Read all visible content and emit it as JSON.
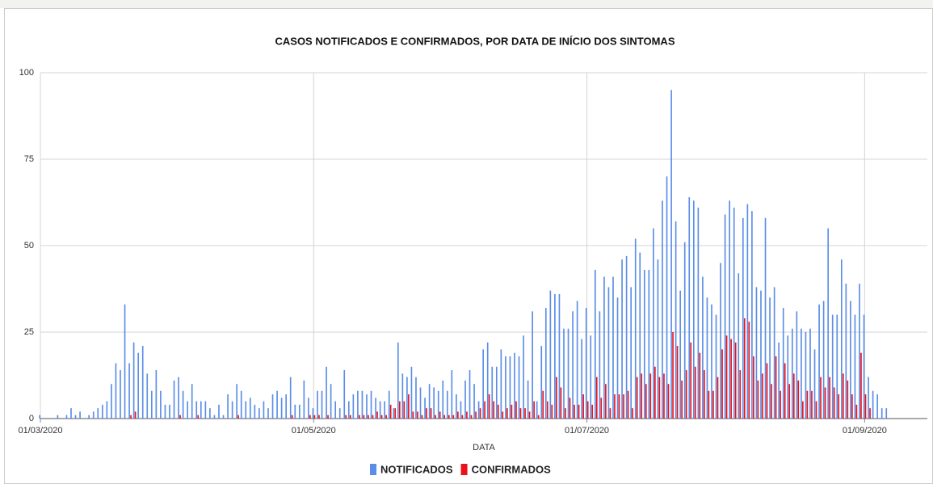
{
  "chart_data": {
    "type": "bar",
    "title": "CASOS NOTIFICADOS E CONFIRMADOS, POR DATA DE INÍCIO DOS SINTOMAS",
    "x_label": "DATA",
    "x": [
      "01/03/2020",
      "02/03/2020",
      "03/03/2020",
      "04/03/2020",
      "05/03/2020",
      "06/03/2020",
      "07/03/2020",
      "08/03/2020",
      "09/03/2020",
      "10/03/2020",
      "11/03/2020",
      "12/03/2020",
      "13/03/2020",
      "14/03/2020",
      "15/03/2020",
      "16/03/2020",
      "17/03/2020",
      "18/03/2020",
      "19/03/2020",
      "20/03/2020",
      "21/03/2020",
      "22/03/2020",
      "23/03/2020",
      "24/03/2020",
      "25/03/2020",
      "26/03/2020",
      "27/03/2020",
      "28/03/2020",
      "29/03/2020",
      "30/03/2020",
      "31/03/2020",
      "01/04/2020",
      "02/04/2020",
      "03/04/2020",
      "04/04/2020",
      "05/04/2020",
      "06/04/2020",
      "07/04/2020",
      "08/04/2020",
      "09/04/2020",
      "10/04/2020",
      "11/04/2020",
      "12/04/2020",
      "13/04/2020",
      "14/04/2020",
      "15/04/2020",
      "16/04/2020",
      "17/04/2020",
      "18/04/2020",
      "19/04/2020",
      "20/04/2020",
      "21/04/2020",
      "22/04/2020",
      "23/04/2020",
      "24/04/2020",
      "25/04/2020",
      "26/04/2020",
      "27/04/2020",
      "28/04/2020",
      "29/04/2020",
      "30/04/2020",
      "01/05/2020",
      "02/05/2020",
      "03/05/2020",
      "04/05/2020",
      "05/05/2020",
      "06/05/2020",
      "07/05/2020",
      "08/05/2020",
      "09/05/2020",
      "10/05/2020",
      "11/05/2020",
      "12/05/2020",
      "13/05/2020",
      "14/05/2020",
      "15/05/2020",
      "16/05/2020",
      "17/05/2020",
      "18/05/2020",
      "19/05/2020",
      "20/05/2020",
      "21/05/2020",
      "22/05/2020",
      "23/05/2020",
      "24/05/2020",
      "25/05/2020",
      "26/05/2020",
      "27/05/2020",
      "28/05/2020",
      "29/05/2020",
      "30/05/2020",
      "31/05/2020",
      "01/06/2020",
      "02/06/2020",
      "03/06/2020",
      "04/06/2020",
      "05/06/2020",
      "06/06/2020",
      "07/06/2020",
      "08/06/2020",
      "09/06/2020",
      "10/06/2020",
      "11/06/2020",
      "12/06/2020",
      "13/06/2020",
      "14/06/2020",
      "15/06/2020",
      "16/06/2020",
      "17/06/2020",
      "18/06/2020",
      "19/06/2020",
      "20/06/2020",
      "21/06/2020",
      "22/06/2020",
      "23/06/2020",
      "24/06/2020",
      "25/06/2020",
      "26/06/2020",
      "27/06/2020",
      "28/06/2020",
      "29/06/2020",
      "30/06/2020",
      "01/07/2020",
      "02/07/2020",
      "03/07/2020",
      "04/07/2020",
      "05/07/2020",
      "06/07/2020",
      "07/07/2020",
      "08/07/2020",
      "09/07/2020",
      "10/07/2020",
      "11/07/2020",
      "12/07/2020",
      "13/07/2020",
      "14/07/2020",
      "15/07/2020",
      "16/07/2020",
      "17/07/2020",
      "18/07/2020",
      "19/07/2020",
      "20/07/2020",
      "21/07/2020",
      "22/07/2020",
      "23/07/2020",
      "24/07/2020",
      "25/07/2020",
      "26/07/2020",
      "27/07/2020",
      "28/07/2020",
      "29/07/2020",
      "30/07/2020",
      "31/07/2020",
      "01/08/2020",
      "02/08/2020",
      "03/08/2020",
      "04/08/2020",
      "05/08/2020",
      "06/08/2020",
      "07/08/2020",
      "08/08/2020",
      "09/08/2020",
      "10/08/2020",
      "11/08/2020",
      "12/08/2020",
      "13/08/2020",
      "14/08/2020",
      "15/08/2020",
      "16/08/2020",
      "17/08/2020",
      "18/08/2020",
      "19/08/2020",
      "20/08/2020",
      "21/08/2020",
      "22/08/2020",
      "23/08/2020",
      "24/08/2020",
      "25/08/2020",
      "26/08/2020",
      "27/08/2020",
      "28/08/2020",
      "29/08/2020",
      "30/08/2020",
      "31/08/2020",
      "01/09/2020",
      "02/09/2020",
      "03/09/2020",
      "04/09/2020",
      "05/09/2020",
      "06/09/2020"
    ],
    "series": [
      {
        "name": "NOTIFICADOS",
        "color": "#5b8ee6",
        "values": [
          1,
          0,
          0,
          0,
          1,
          0,
          1,
          3,
          1,
          2,
          0,
          1,
          2,
          3,
          4,
          5,
          10,
          16,
          14,
          33,
          16,
          22,
          19,
          21,
          13,
          8,
          14,
          8,
          4,
          4,
          11,
          12,
          8,
          5,
          10,
          5,
          5,
          5,
          3,
          1,
          4,
          1,
          7,
          5,
          10,
          8,
          5,
          6,
          4,
          3,
          5,
          3,
          7,
          8,
          6,
          7,
          12,
          4,
          4,
          11,
          6,
          3,
          8,
          8,
          15,
          10,
          5,
          3,
          14,
          5,
          7,
          8,
          8,
          7,
          8,
          6,
          5,
          5,
          8,
          3,
          22,
          13,
          12,
          15,
          12,
          9,
          6,
          10,
          9,
          8,
          11,
          8,
          14,
          7,
          5,
          11,
          14,
          10,
          5,
          20,
          22,
          15,
          15,
          20,
          18,
          18,
          19,
          18,
          24,
          11,
          31,
          5,
          21,
          32,
          37,
          36,
          36,
          26,
          26,
          31,
          34,
          23,
          32,
          24,
          43,
          31,
          41,
          38,
          41,
          35,
          46,
          47,
          38,
          52,
          48,
          43,
          43,
          55,
          46,
          63,
          70,
          95,
          57,
          37,
          51,
          64,
          63,
          61,
          41,
          35,
          33,
          30,
          45,
          59,
          63,
          61,
          42,
          58,
          62,
          60,
          38,
          37,
          58,
          35,
          38,
          22,
          32,
          24,
          26,
          31,
          26,
          25,
          26,
          20,
          33,
          34,
          55,
          30,
          30,
          46,
          39,
          34,
          30,
          39,
          30,
          12,
          8,
          7,
          3,
          3
        ]
      },
      {
        "name": "CONFIRMADOS",
        "color": "#e8141c",
        "values": [
          0,
          0,
          0,
          0,
          0,
          0,
          0,
          0,
          0,
          0,
          0,
          0,
          0,
          0,
          0,
          0,
          0,
          0,
          0,
          0,
          1,
          2,
          0,
          0,
          0,
          0,
          0,
          0,
          0,
          0,
          0,
          1,
          0,
          0,
          0,
          1,
          0,
          0,
          0,
          0,
          0,
          0,
          0,
          0,
          1,
          0,
          0,
          0,
          0,
          0,
          0,
          0,
          0,
          0,
          0,
          0,
          1,
          0,
          0,
          0,
          1,
          1,
          1,
          0,
          1,
          0,
          0,
          0,
          1,
          1,
          0,
          1,
          1,
          1,
          1,
          2,
          1,
          1,
          4,
          3,
          5,
          5,
          7,
          2,
          2,
          1,
          3,
          3,
          1,
          2,
          1,
          1,
          1,
          2,
          1,
          2,
          1,
          2,
          3,
          5,
          7,
          5,
          4,
          2,
          3,
          4,
          5,
          3,
          3,
          2,
          5,
          1,
          8,
          5,
          4,
          12,
          9,
          3,
          6,
          4,
          4,
          7,
          5,
          4,
          12,
          6,
          10,
          3,
          7,
          7,
          7,
          8,
          3,
          12,
          13,
          10,
          13,
          15,
          12,
          13,
          10,
          25,
          21,
          11,
          14,
          22,
          15,
          19,
          14,
          8,
          8,
          12,
          20,
          24,
          23,
          22,
          14,
          29,
          28,
          18,
          11,
          13,
          16,
          10,
          18,
          8,
          16,
          10,
          13,
          11,
          5,
          8,
          8,
          5,
          12,
          9,
          12,
          9,
          7,
          13,
          11,
          7,
          4,
          19,
          7,
          3,
          0,
          0,
          0,
          0
        ]
      }
    ],
    "xlim": [
      "01/03/2020",
      "15/09/2020"
    ],
    "xticks": [
      "01/03/2020",
      "01/05/2020",
      "01/07/2020",
      "01/09/2020"
    ],
    "ylim": [
      0,
      100
    ],
    "yticks": [
      0,
      25,
      50,
      75,
      100
    ],
    "grid": true,
    "legend": "bottom"
  }
}
